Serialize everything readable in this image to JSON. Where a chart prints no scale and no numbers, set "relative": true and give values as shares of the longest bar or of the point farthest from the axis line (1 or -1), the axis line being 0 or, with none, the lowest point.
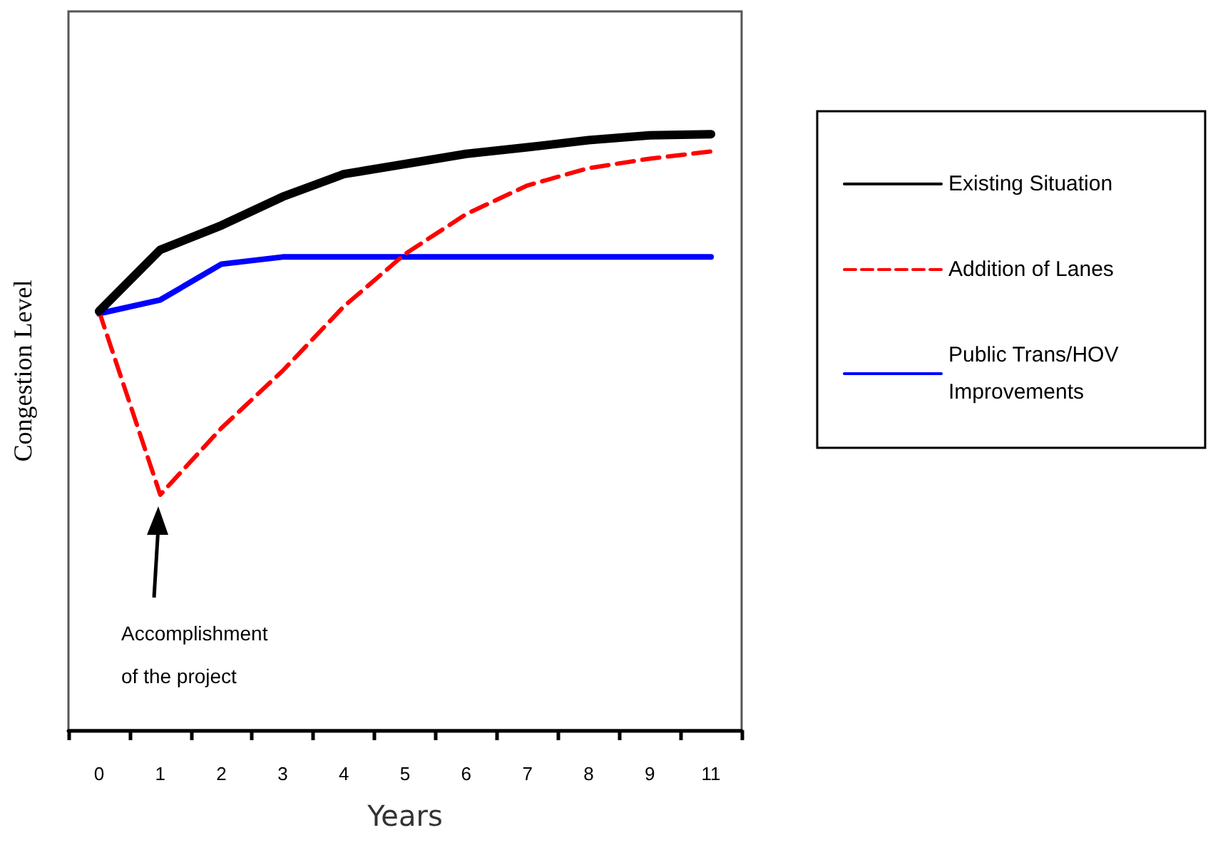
{
  "chart_data": {
    "type": "line",
    "xlabel": "Years",
    "ylabel": "Congestion Level",
    "relative": true,
    "categories": [
      "0",
      "1",
      "2",
      "3",
      "4",
      "5",
      "6",
      "7",
      "8",
      "9",
      "11"
    ],
    "series": [
      {
        "name": "Existing Situation",
        "color": "#000000",
        "line_style": "solid",
        "values": [
          0.703,
          0.806,
          0.847,
          0.895,
          0.933,
          0.95,
          0.967,
          0.978,
          0.99,
          0.998,
          1
        ]
      },
      {
        "name": "Addition of Lanes",
        "color": "#ff0000",
        "line_style": "dashed",
        "values": [
          0.703,
          0.395,
          0.507,
          0.603,
          0.711,
          0.799,
          0.866,
          0.914,
          0.943,
          0.959,
          0.971
        ]
      },
      {
        "name": "Public Trans/HOV Improvements",
        "color": "#0000ff",
        "line_style": "solid",
        "values": [
          0.699,
          0.722,
          0.782,
          0.794,
          0.794,
          0.794,
          0.794,
          0.794,
          0.794,
          0.794,
          0.794
        ]
      }
    ],
    "annotations": [
      "Accomplishment of the project"
    ],
    "legend": "right",
    "marker": "none",
    "grid": false
  }
}
